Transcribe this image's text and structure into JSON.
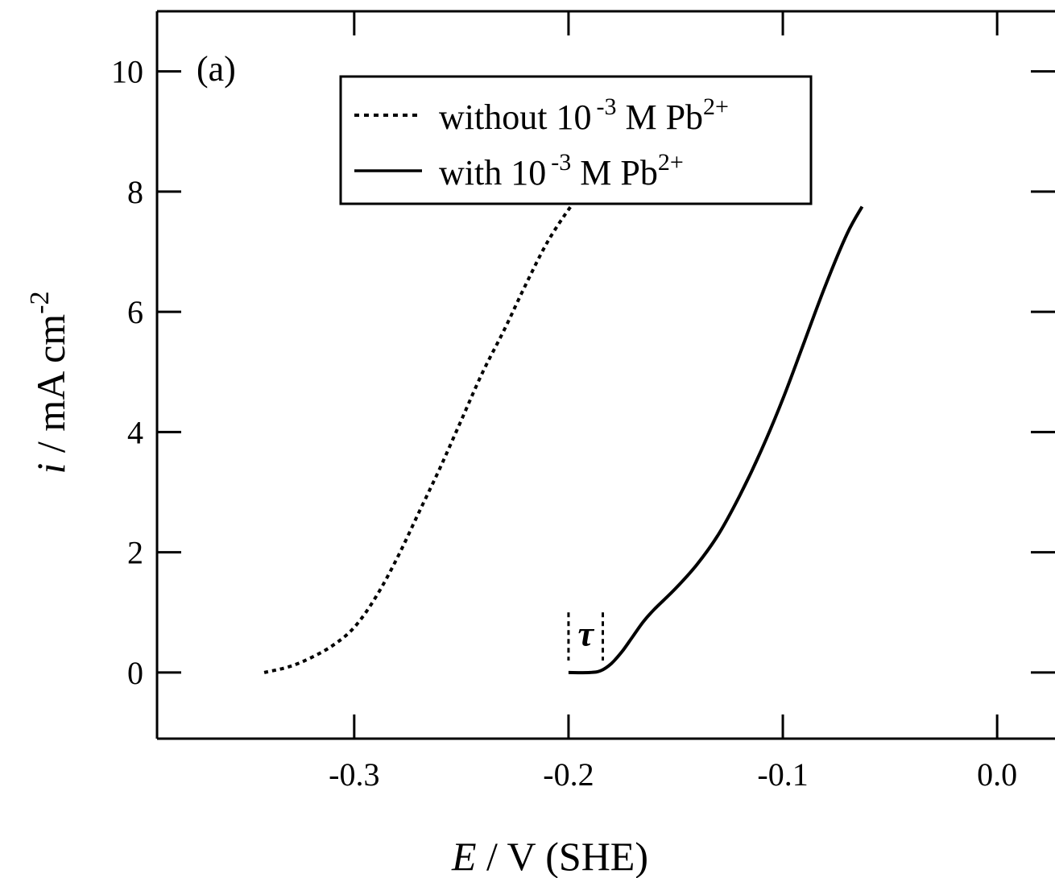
{
  "chart_data": {
    "type": "line",
    "panel_label": "(a)",
    "xlabel": {
      "var": "E",
      "rest": " / V (SHE)"
    },
    "ylabel": {
      "var": "i",
      "rest": " / mA cm",
      "sup": "-2"
    },
    "xlim": [
      -0.392,
      0.027
    ],
    "ylim": [
      -1.1,
      11.0
    ],
    "x_ticks": [
      -0.3,
      -0.2,
      -0.1,
      0.0
    ],
    "x_tick_labels": [
      "-0.3",
      "-0.2",
      "-0.1",
      "0.0"
    ],
    "y_ticks": [
      0,
      2,
      4,
      6,
      8,
      10
    ],
    "y_tick_labels": [
      "0",
      "2",
      "4",
      "6",
      "8",
      "10"
    ],
    "grid": false,
    "legend_position": "top-center",
    "legend": [
      {
        "pre": "without 10",
        "exp": "-3",
        "mid": " M Pb",
        "ion": "2+",
        "style": "dotted"
      },
      {
        "pre": "with 10",
        "exp": "-3",
        "mid": " M Pb",
        "ion": "2+",
        "style": "solid"
      }
    ],
    "annotation": {
      "text": "τ",
      "x_start": -0.2,
      "x_end": -0.184,
      "y_range": [
        0.2,
        1.0
      ]
    },
    "series": [
      {
        "style": "dotted",
        "x": [
          -0.342,
          -0.33,
          -0.32,
          -0.31,
          -0.3,
          -0.29,
          -0.28,
          -0.27,
          -0.26,
          -0.25,
          -0.24,
          -0.23,
          -0.22,
          -0.21,
          -0.2,
          -0.194
        ],
        "y": [
          0.0,
          0.1,
          0.25,
          0.45,
          0.75,
          1.25,
          1.9,
          2.65,
          3.4,
          4.2,
          5.0,
          5.7,
          6.45,
          7.15,
          7.7,
          7.95
        ]
      },
      {
        "style": "solid",
        "x": [
          -0.2,
          -0.19,
          -0.185,
          -0.18,
          -0.175,
          -0.17,
          -0.165,
          -0.16,
          -0.15,
          -0.14,
          -0.13,
          -0.12,
          -0.11,
          -0.1,
          -0.09,
          -0.08,
          -0.07,
          -0.063
        ],
        "y": [
          0.0,
          0.0,
          0.03,
          0.15,
          0.35,
          0.6,
          0.85,
          1.05,
          1.4,
          1.8,
          2.3,
          2.95,
          3.7,
          4.55,
          5.5,
          6.45,
          7.3,
          7.75
        ]
      }
    ]
  }
}
